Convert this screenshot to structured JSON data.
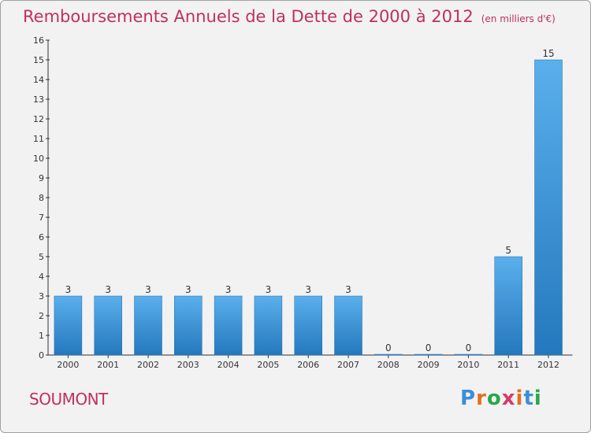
{
  "header": {
    "title": "Remboursements Annuels de la Dette de 2000 à 2012",
    "subtitle": "(en milliers d'€)"
  },
  "footer": {
    "commune": "SOUMONT",
    "logo_text": "Proxiti"
  },
  "colors": {
    "title": "#c0305e",
    "bar_top": "#5aafec",
    "bar_bottom": "#2478bd",
    "background": "#f2f2f2"
  },
  "chart_data": {
    "type": "bar",
    "title": "Remboursements Annuels de la Dette de 2000 à 2012",
    "xlabel": "",
    "ylabel": "",
    "categories": [
      "2000",
      "2001",
      "2002",
      "2003",
      "2004",
      "2005",
      "2006",
      "2007",
      "2008",
      "2009",
      "2010",
      "2011",
      "2012"
    ],
    "values": [
      3,
      3,
      3,
      3,
      3,
      3,
      3,
      3,
      0,
      0,
      0,
      5,
      15
    ],
    "data_labels": [
      "3",
      "3",
      "3",
      "3",
      "3",
      "3",
      "3",
      "3",
      "0",
      "0",
      "0",
      "5",
      "15"
    ],
    "ylim": [
      0,
      16
    ],
    "yticks": [
      "0",
      "1",
      "2",
      "3",
      "4",
      "5",
      "6",
      "7",
      "8",
      "9",
      "10",
      "11",
      "12",
      "13",
      "14",
      "15",
      "16"
    ],
    "grid": false,
    "legend": "none"
  }
}
